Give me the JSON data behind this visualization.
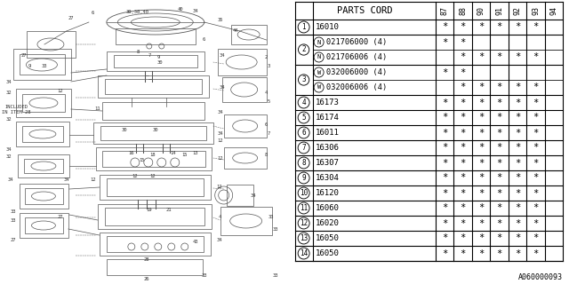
{
  "bg_color": "#ffffff",
  "table_header": "PARTS CORD",
  "year_cols": [
    "87",
    "88",
    "90",
    "91",
    "92",
    "93",
    "94"
  ],
  "parts": [
    {
      "num": "1",
      "code": "16010",
      "prefix": "",
      "marks": [
        1,
        1,
        1,
        1,
        1,
        1,
        0
      ]
    },
    {
      "num": "2a",
      "code": "021706000 (4)",
      "prefix": "N",
      "marks": [
        1,
        1,
        0,
        0,
        0,
        0,
        0
      ]
    },
    {
      "num": "2b",
      "code": "021706006 (4)",
      "prefix": "N",
      "marks": [
        0,
        1,
        1,
        1,
        1,
        1,
        0
      ]
    },
    {
      "num": "3a",
      "code": "032006000 (4)",
      "prefix": "W",
      "marks": [
        1,
        1,
        0,
        0,
        0,
        0,
        0
      ]
    },
    {
      "num": "3b",
      "code": "032006006 (4)",
      "prefix": "W",
      "marks": [
        0,
        1,
        1,
        1,
        1,
        1,
        0
      ]
    },
    {
      "num": "4",
      "code": "16173",
      "prefix": "",
      "marks": [
        1,
        1,
        1,
        1,
        1,
        1,
        0
      ]
    },
    {
      "num": "5",
      "code": "16174",
      "prefix": "",
      "marks": [
        1,
        1,
        1,
        1,
        1,
        1,
        0
      ]
    },
    {
      "num": "6",
      "code": "16011",
      "prefix": "",
      "marks": [
        1,
        1,
        1,
        1,
        1,
        1,
        0
      ]
    },
    {
      "num": "7",
      "code": "16306",
      "prefix": "",
      "marks": [
        1,
        1,
        1,
        1,
        1,
        1,
        0
      ]
    },
    {
      "num": "8",
      "code": "16307",
      "prefix": "",
      "marks": [
        1,
        1,
        1,
        1,
        1,
        1,
        0
      ]
    },
    {
      "num": "9",
      "code": "16304",
      "prefix": "",
      "marks": [
        1,
        1,
        1,
        1,
        1,
        1,
        0
      ]
    },
    {
      "num": "10",
      "code": "16120",
      "prefix": "",
      "marks": [
        1,
        1,
        1,
        1,
        1,
        1,
        0
      ]
    },
    {
      "num": "11",
      "code": "16060",
      "prefix": "",
      "marks": [
        1,
        1,
        1,
        1,
        1,
        1,
        0
      ]
    },
    {
      "num": "12",
      "code": "16020",
      "prefix": "",
      "marks": [
        1,
        1,
        1,
        1,
        1,
        1,
        0
      ]
    },
    {
      "num": "13",
      "code": "16050",
      "prefix": "",
      "marks": [
        1,
        1,
        1,
        1,
        1,
        1,
        0
      ]
    },
    {
      "num": "14",
      "code": "16050",
      "prefix": "",
      "marks": [
        1,
        1,
        1,
        1,
        1,
        1,
        0
      ]
    }
  ],
  "footer_code": "A060000093",
  "table_line_color": "#000000",
  "mark_symbol": "*",
  "text_color": "#000000",
  "diag_line_color": "#555555",
  "diag_lw": 0.5
}
